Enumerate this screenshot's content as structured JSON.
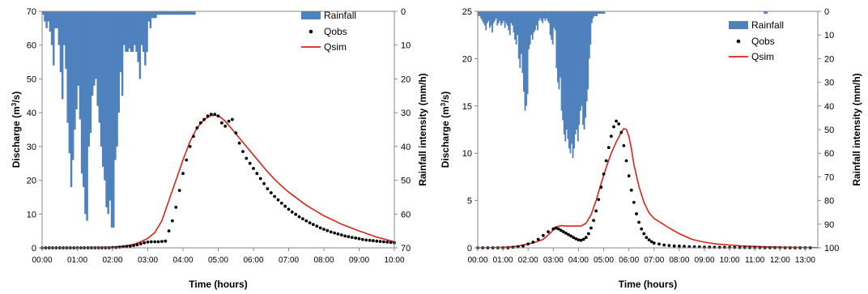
{
  "colors": {
    "rainfall": "#4f81bd",
    "qobs": "#000000",
    "qsim": "#d9231b"
  },
  "chart_data": [
    {
      "type": "line",
      "xlabel": "Time (hours)",
      "ylabel_left": "Discharge (m3/s)",
      "ylabel_right": "Rainfall intensity (mm/h)",
      "x_ticks": [
        "00:00",
        "01:00",
        "02:00",
        "03:00",
        "04:00",
        "05:00",
        "06:00",
        "07:00",
        "08:00",
        "09:00",
        "10:00"
      ],
      "xlim_hours": [
        0,
        10
      ],
      "ylim_left": [
        0,
        70
      ],
      "y_ticks_left": [
        0,
        10,
        20,
        30,
        40,
        50,
        60,
        70
      ],
      "ylim_right_inverted": [
        0,
        70
      ],
      "y_ticks_right": [
        0,
        10,
        20,
        30,
        40,
        50,
        60,
        70
      ],
      "legend": {
        "position": "top-right",
        "entries": [
          "Rainfall",
          "Qobs",
          "Qsim"
        ]
      },
      "rainfall": {
        "name": "Rainfall",
        "type": "bar",
        "interval_hours": 0.05,
        "values": [
          1,
          3,
          5,
          3,
          6,
          10,
          16,
          5,
          5,
          10,
          18,
          26,
          10,
          17,
          33,
          42,
          52,
          44,
          35,
          29,
          22,
          32,
          48,
          52,
          60,
          62,
          40,
          36,
          25,
          22,
          20,
          28,
          33,
          40,
          46,
          50,
          58,
          60,
          56,
          64,
          64,
          44,
          40,
          30,
          18,
          25,
          10,
          12,
          12,
          11,
          12,
          12,
          10,
          12,
          15,
          20,
          10,
          12,
          16,
          12,
          3,
          5,
          2,
          2,
          2,
          1,
          1,
          1,
          1,
          1,
          1,
          1,
          1,
          1,
          1,
          1,
          1,
          1,
          1,
          1,
          1,
          1,
          1,
          1,
          1,
          1,
          1,
          0,
          0,
          0,
          0,
          0,
          0,
          0,
          0,
          0,
          0,
          0,
          0,
          0,
          0,
          0,
          0,
          0,
          0,
          0,
          0,
          0,
          0,
          0,
          0,
          0,
          0,
          0,
          0,
          0,
          0,
          0,
          0,
          0,
          0,
          0,
          0,
          0,
          0,
          0,
          0,
          0,
          0,
          0,
          0,
          0,
          0,
          0,
          0,
          0,
          0,
          0,
          0,
          0,
          0,
          0,
          0,
          0,
          0,
          0,
          0,
          0,
          0,
          0,
          0,
          0,
          0,
          0,
          0,
          0,
          0,
          0,
          0,
          0,
          0,
          0,
          0,
          0,
          0,
          0,
          0,
          0,
          0,
          0,
          0,
          0,
          0,
          0,
          0,
          0,
          0,
          0,
          0,
          0,
          0,
          0,
          0,
          0,
          0,
          0,
          0,
          0,
          0,
          0,
          0,
          0,
          0,
          0,
          0,
          0,
          0,
          0,
          0,
          0
        ]
      },
      "qobs": {
        "name": "Qobs",
        "type": "scatter",
        "x": [
          0,
          0.1,
          0.2,
          0.3,
          0.4,
          0.5,
          0.6,
          0.7,
          0.8,
          0.9,
          1,
          1.1,
          1.2,
          1.3,
          1.4,
          1.5,
          1.6,
          1.7,
          1.8,
          1.9,
          2,
          2.1,
          2.2,
          2.3,
          2.4,
          2.5,
          2.6,
          2.7,
          2.8,
          2.9,
          3,
          3.1,
          3.2,
          3.3,
          3.4,
          3.5,
          3.6,
          3.7,
          3.8,
          3.9,
          4,
          4.1,
          4.2,
          4.3,
          4.4,
          4.5,
          4.6,
          4.7,
          4.8,
          4.9,
          5,
          5.1,
          5.2,
          5.3,
          5.4,
          5.5,
          5.6,
          5.7,
          5.8,
          5.9,
          6,
          6.1,
          6.2,
          6.3,
          6.4,
          6.5,
          6.6,
          6.7,
          6.8,
          6.9,
          7,
          7.1,
          7.2,
          7.3,
          7.4,
          7.5,
          7.6,
          7.7,
          7.8,
          7.9,
          8,
          8.1,
          8.2,
          8.3,
          8.4,
          8.5,
          8.6,
          8.7,
          8.8,
          8.9,
          9,
          9.1,
          9.2,
          9.3,
          9.4,
          9.5,
          9.6,
          9.7,
          9.8,
          9.9,
          10
        ],
        "y": [
          0,
          0,
          0,
          0,
          0,
          0,
          0,
          0,
          0,
          0,
          0,
          0,
          0,
          0,
          0,
          0,
          0,
          0,
          0,
          0,
          0.1,
          0.1,
          0.2,
          0.3,
          0.4,
          0.5,
          0.7,
          0.9,
          1.2,
          1.5,
          1.7,
          1.8,
          1.8,
          1.8,
          1.9,
          2,
          5,
          8,
          12,
          17,
          22,
          26,
          30,
          33,
          35.5,
          37,
          38,
          39,
          39.5,
          39.5,
          39,
          37,
          36,
          37.5,
          38,
          34,
          31,
          28.5,
          26.5,
          25,
          23.5,
          22,
          20.5,
          19,
          17.5,
          16.3,
          15.2,
          14.2,
          13.2,
          12.3,
          11.4,
          10.6,
          9.9,
          9.2,
          8.6,
          8,
          7.4,
          6.9,
          6.4,
          5.9,
          5.5,
          5.1,
          4.7,
          4.4,
          4.1,
          3.8,
          3.5,
          3.3,
          3.1,
          2.9,
          2.7,
          2.5,
          2.3,
          2.2,
          2.1,
          2,
          1.9,
          1.8,
          1.7,
          1.6,
          1.5
        ]
      },
      "qsim": {
        "name": "Qsim",
        "type": "line",
        "x": [
          0,
          1,
          2,
          2.3,
          2.6,
          2.8,
          3,
          3.2,
          3.4,
          3.6,
          3.8,
          4,
          4.2,
          4.4,
          4.6,
          4.8,
          5,
          5.2,
          5.4,
          5.6,
          5.8,
          6,
          6.2,
          6.4,
          6.6,
          6.8,
          7,
          7.5,
          8,
          8.5,
          9,
          9.5,
          10
        ],
        "y": [
          0,
          0,
          0.2,
          0.5,
          1,
          1.8,
          2.8,
          4.5,
          8,
          14,
          20,
          26,
          31.5,
          35.5,
          38,
          39.2,
          39.2,
          37.5,
          35,
          32.5,
          30,
          27.5,
          25,
          22.5,
          20.3,
          18.3,
          16.5,
          12.6,
          9.5,
          7,
          5,
          3.2,
          1.8
        ]
      }
    },
    {
      "type": "line",
      "xlabel": "Time (hours)",
      "ylabel_left": "Discharge (m3/s)",
      "ylabel_right": "Rainfall intensity (mm/h)",
      "x_ticks": [
        "00:00",
        "01:00",
        "02:00",
        "03:00",
        "04:00",
        "05:00",
        "06:00",
        "07:00",
        "08:00",
        "09:00",
        "10:00",
        "11:00",
        "12:00",
        "13:00"
      ],
      "xlim_hours": [
        0,
        13.5
      ],
      "ylim_left": [
        0,
        25
      ],
      "y_ticks_left": [
        0,
        5,
        10,
        15,
        20,
        25
      ],
      "ylim_right_inverted": [
        0,
        100
      ],
      "y_ticks_right": [
        0,
        10,
        20,
        30,
        40,
        50,
        60,
        70,
        80,
        90,
        100
      ],
      "legend": {
        "position": "top-right",
        "entries": [
          "Rainfall",
          "Qobs",
          "Qsim"
        ]
      },
      "rainfall": {
        "name": "Rainfall",
        "type": "bar",
        "interval_hours": 0.05,
        "values": [
          2,
          2,
          3,
          4,
          5,
          6,
          8,
          5,
          4,
          7,
          6,
          9,
          5,
          4,
          3,
          6,
          5,
          4,
          6,
          5,
          4,
          7,
          5,
          6,
          8,
          10,
          5,
          6,
          9,
          12,
          14,
          10,
          20,
          24,
          18,
          26,
          34,
          42,
          40,
          35,
          16,
          14,
          10,
          12,
          9,
          8,
          6,
          8,
          4,
          3,
          4,
          5,
          3,
          4,
          3,
          4,
          5,
          10,
          12,
          14,
          7,
          8,
          24,
          30,
          33,
          28,
          42,
          46,
          52,
          55,
          50,
          54,
          58,
          60,
          56,
          62,
          58,
          52,
          50,
          55,
          48,
          42,
          40,
          48,
          50,
          45,
          38,
          33,
          20,
          14,
          5,
          3,
          2,
          2,
          2,
          1,
          1,
          1,
          1,
          1,
          1,
          0,
          0,
          0,
          0,
          0,
          0,
          0,
          0,
          0,
          0,
          0,
          0,
          0,
          0,
          0,
          0,
          0,
          0,
          0,
          0,
          0,
          0,
          0,
          0,
          0,
          0,
          0,
          0,
          0,
          0,
          0,
          0,
          0,
          0,
          0,
          0,
          0,
          0,
          0,
          0,
          0,
          0,
          0,
          0,
          0,
          0,
          0,
          0,
          0,
          0,
          0,
          0,
          0,
          0,
          0,
          0,
          0,
          0,
          0,
          0,
          0,
          0,
          0,
          0,
          0,
          0,
          0,
          0,
          0,
          0,
          0,
          0,
          0,
          0,
          0,
          0,
          0,
          0,
          0,
          0,
          0,
          0,
          0,
          0,
          0,
          0,
          0,
          0,
          0,
          0,
          0,
          0,
          0,
          0,
          0,
          0,
          0,
          0,
          0,
          0,
          0,
          0,
          0,
          0,
          0,
          0,
          0,
          0,
          0,
          0,
          0,
          0,
          0,
          0,
          0,
          0,
          0,
          0,
          0,
          0,
          0,
          0,
          0,
          0,
          0,
          0,
          1,
          1,
          1,
          0,
          0,
          0,
          0,
          0,
          0,
          0,
          0,
          0,
          0,
          0,
          0,
          0,
          0,
          0,
          0,
          0,
          0,
          0,
          0,
          0,
          0,
          0,
          0,
          0,
          0,
          0,
          0,
          0,
          0,
          0,
          0,
          0,
          0,
          0,
          0,
          0,
          0,
          0,
          0,
          0,
          0,
          0,
          0,
          0,
          0,
          0,
          0,
          0,
          0,
          0,
          0,
          0,
          0,
          0,
          0,
          0,
          0,
          0,
          0,
          0,
          0,
          0,
          0,
          0,
          0,
          0,
          0,
          0,
          0,
          0,
          0,
          0,
          0,
          0,
          0,
          0,
          0,
          0,
          0,
          0,
          0,
          0,
          0,
          0,
          0,
          0,
          0,
          0,
          0,
          0,
          0,
          0,
          0,
          0,
          0,
          0,
          0,
          0,
          0,
          0,
          0,
          0,
          0,
          0,
          0,
          0,
          0,
          0,
          0,
          0,
          0,
          0,
          0,
          0,
          0,
          0,
          0,
          0,
          0,
          0,
          0,
          0,
          0
        ]
      },
      "qobs": {
        "name": "Qobs",
        "type": "scatter",
        "x": [
          0,
          0.2,
          0.4,
          0.6,
          0.8,
          1,
          1.2,
          1.4,
          1.6,
          1.8,
          2,
          2.2,
          2.4,
          2.6,
          2.8,
          3,
          3.1,
          3.2,
          3.3,
          3.4,
          3.5,
          3.6,
          3.7,
          3.8,
          3.9,
          4,
          4.1,
          4.2,
          4.3,
          4.4,
          4.5,
          4.6,
          4.7,
          4.8,
          4.9,
          5,
          5.1,
          5.2,
          5.3,
          5.4,
          5.5,
          5.6,
          5.7,
          5.8,
          5.9,
          6,
          6.1,
          6.2,
          6.3,
          6.4,
          6.5,
          6.6,
          6.7,
          6.8,
          6.9,
          7,
          7.2,
          7.4,
          7.6,
          7.8,
          8,
          8.2,
          8.4,
          8.6,
          8.8,
          9,
          9.2,
          9.4,
          9.6,
          9.8,
          10,
          10.2,
          10.4,
          10.6,
          10.8,
          11,
          11.2,
          11.4,
          11.6,
          11.8,
          12,
          12.2,
          12.4,
          12.6,
          12.8,
          13,
          13.2
        ],
        "y": [
          0,
          0,
          0,
          0,
          0,
          0,
          0,
          0.05,
          0.1,
          0.2,
          0.4,
          0.6,
          0.9,
          1.3,
          1.7,
          2.0,
          2.1,
          2.0,
          1.85,
          1.7,
          1.55,
          1.4,
          1.25,
          1.1,
          0.95,
          0.85,
          0.8,
          0.9,
          1.1,
          1.5,
          2.1,
          2.9,
          3.9,
          5.1,
          6.4,
          7.8,
          9.2,
          10.6,
          11.8,
          12.8,
          13.4,
          13.1,
          12.2,
          10.8,
          9.2,
          7.6,
          6.1,
          4.8,
          3.6,
          2.7,
          2.0,
          1.5,
          1.1,
          0.85,
          0.65,
          0.5,
          0.4,
          0.3,
          0.25,
          0.2,
          0.18,
          0.15,
          0.12,
          0.1,
          0.09,
          0.08,
          0.07,
          0.06,
          0.05,
          0.05,
          0.04,
          0.04,
          0.03,
          0.03,
          0.02,
          0.02,
          0.02,
          0.01,
          0.01,
          0.01,
          0.01,
          0,
          0,
          0,
          0,
          0,
          0
        ]
      },
      "qsim": {
        "name": "Qsim",
        "type": "line",
        "x": [
          0,
          1,
          1.5,
          2,
          2.3,
          2.6,
          2.9,
          3.1,
          3.3,
          3.5,
          3.8,
          4.1,
          4.3,
          4.5,
          4.7,
          4.9,
          5.1,
          5.3,
          5.5,
          5.7,
          5.8,
          5.9,
          6.0,
          6.1,
          6.2,
          6.4,
          6.6,
          6.8,
          7.0,
          7.3,
          7.6,
          8,
          8.5,
          9,
          9.5,
          10,
          10.5,
          11,
          11.5,
          12,
          12.5,
          13,
          13.5
        ],
        "y": [
          0,
          0.05,
          0.15,
          0.4,
          0.6,
          0.9,
          1.6,
          2.2,
          2.35,
          2.3,
          2.3,
          2.3,
          2.6,
          3.5,
          5,
          6.8,
          8.5,
          10,
          11.2,
          12.2,
          12.6,
          12.5,
          11.8,
          10.5,
          8.8,
          6.5,
          4.8,
          3.7,
          3.1,
          2.6,
          2.1,
          1.5,
          0.9,
          0.6,
          0.4,
          0.3,
          0.2,
          0.15,
          0.1,
          0.07,
          0.05,
          0.03,
          0.02
        ]
      }
    }
  ]
}
